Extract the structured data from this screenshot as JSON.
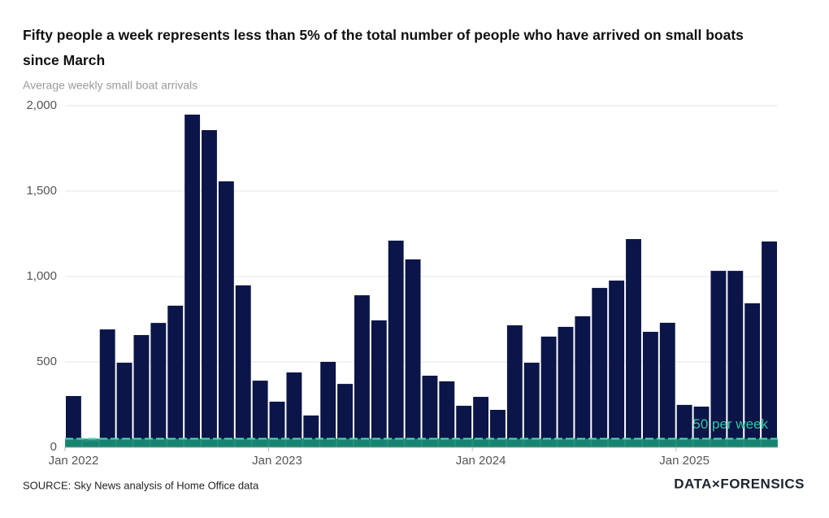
{
  "chart_data": {
    "type": "bar",
    "title": "Fifty people a week represents less than 5% of the total number of people who have arrived on small boats since March",
    "subtitle": "Average weekly small boat arrivals",
    "categories": [
      "Jan 2022",
      null,
      null,
      null,
      null,
      null,
      null,
      null,
      null,
      null,
      null,
      null,
      "Jan 2023",
      null,
      null,
      null,
      null,
      null,
      null,
      null,
      null,
      null,
      null,
      null,
      "Jan 2024",
      null,
      null,
      null,
      null,
      null,
      null,
      null,
      null,
      null,
      null,
      null,
      "Jan 2025",
      null,
      null,
      null,
      null,
      null
    ],
    "values": [
      300,
      33,
      690,
      495,
      657,
      728,
      829,
      1948,
      1857,
      1557,
      948,
      390,
      267,
      438,
      186,
      500,
      371,
      890,
      743,
      1210,
      1100,
      419,
      386,
      243,
      295,
      219,
      714,
      495,
      648,
      705,
      767,
      933,
      976,
      1219,
      676,
      729,
      248,
      238,
      1033,
      1033,
      843,
      1205
    ],
    "color": "#0b1548",
    "reference": {
      "label": "50 per week",
      "value": 50,
      "color": "#178a73"
    },
    "ylim": [
      0,
      2000
    ],
    "yticks": [
      0,
      500,
      {
        "value": 1000,
        "label": "1,000"
      },
      {
        "value": 1500,
        "label": "1,500"
      },
      {
        "value": 2000,
        "label": "2,000"
      }
    ],
    "grid": true,
    "source": "SOURCE: Sky News analysis of Home Office data",
    "logo": "DATA×FORENSICS"
  }
}
